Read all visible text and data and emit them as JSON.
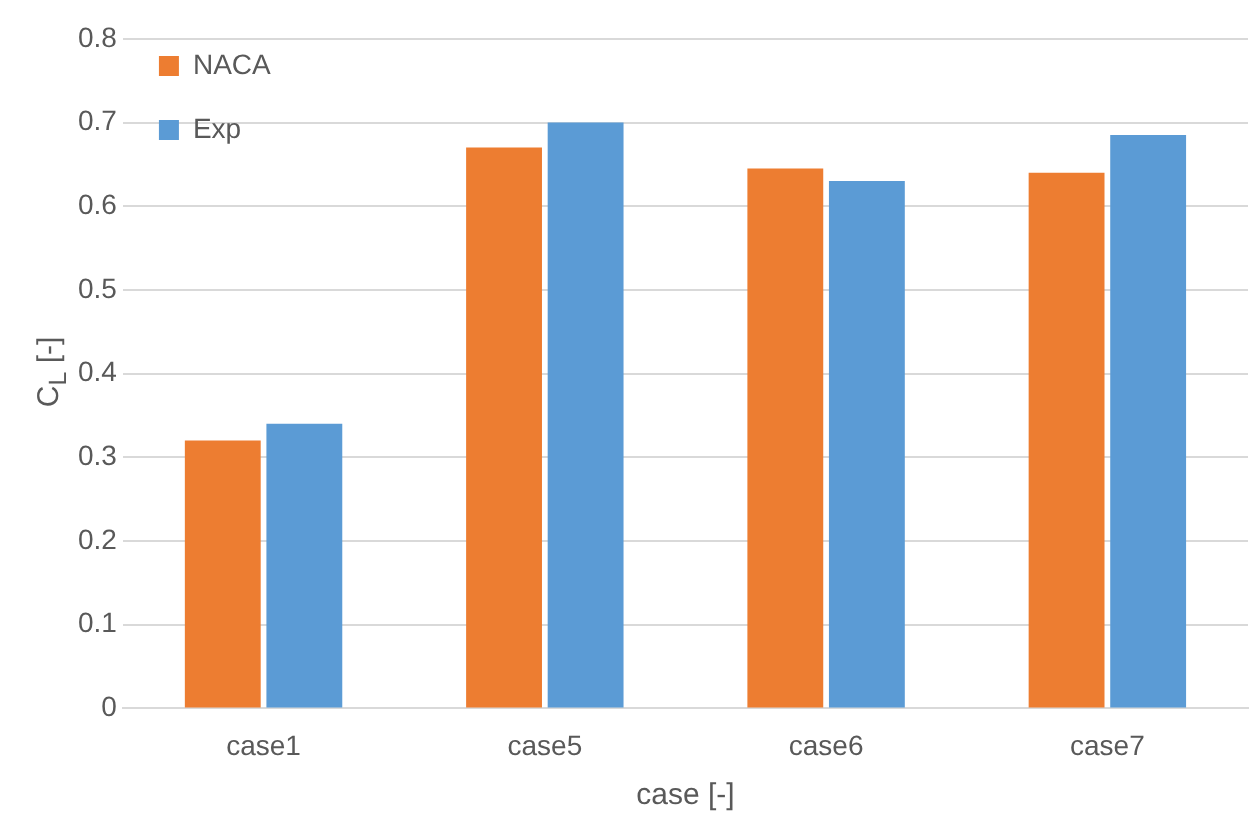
{
  "chart_data": {
    "type": "bar",
    "xlabel": "case [-]",
    "ylabel": "C$_{L}$ [-]",
    "categories": [
      "case1",
      "case5",
      "case6",
      "case7"
    ],
    "series": [
      {
        "name": "NACA",
        "color": "#ed7d31",
        "values": [
          0.32,
          0.67,
          0.645,
          0.64
        ]
      },
      {
        "name": "Exp",
        "color": "#5b9bd5",
        "values": [
          0.34,
          0.7,
          0.63,
          0.685
        ]
      }
    ],
    "ylim": [
      0,
      0.8
    ],
    "yticks": [
      0,
      0.1,
      0.2,
      0.3,
      0.4,
      0.5,
      0.6,
      0.7,
      0.8
    ],
    "grid": "y",
    "legend": "top left"
  }
}
